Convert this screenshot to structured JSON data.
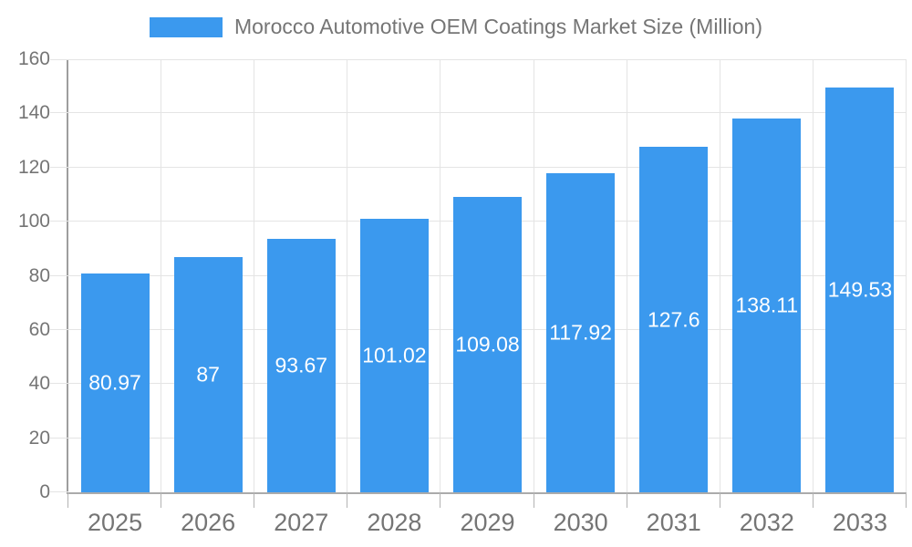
{
  "legend": {
    "title": "Morocco Automotive OEM Coatings Market Size (Million)",
    "swatch": "series-color-swatch"
  },
  "chart_data": {
    "type": "bar",
    "title": "Morocco Automotive OEM Coatings Market Size (Million)",
    "categories": [
      "2025",
      "2026",
      "2027",
      "2028",
      "2029",
      "2030",
      "2031",
      "2032",
      "2033"
    ],
    "values": [
      80.97,
      87,
      93.67,
      101.02,
      109.08,
      117.92,
      127.6,
      138.11,
      149.53
    ],
    "value_labels": [
      "80.97",
      "87",
      "93.67",
      "101.02",
      "109.08",
      "117.92",
      "127.6",
      "138.11",
      "149.53"
    ],
    "xlabel": "",
    "ylabel": "",
    "ylim": [
      0,
      160
    ],
    "yticks": [
      0,
      20,
      40,
      60,
      80,
      100,
      120,
      140,
      160
    ],
    "grid": true,
    "legend_position": "top-center",
    "bar_color": "#3B99EE",
    "value_label_color": "#FFFFFF"
  },
  "colors": {
    "bar": "#3B99EE",
    "grid": "#E4E4E4",
    "axis_y_line": "#9E9E9E",
    "axis_x_line": "#ABABAB",
    "axis_tick": "#B3B3B3",
    "tick_text": "#757575",
    "title_text": "#757575",
    "background": "#FFFFFF"
  }
}
